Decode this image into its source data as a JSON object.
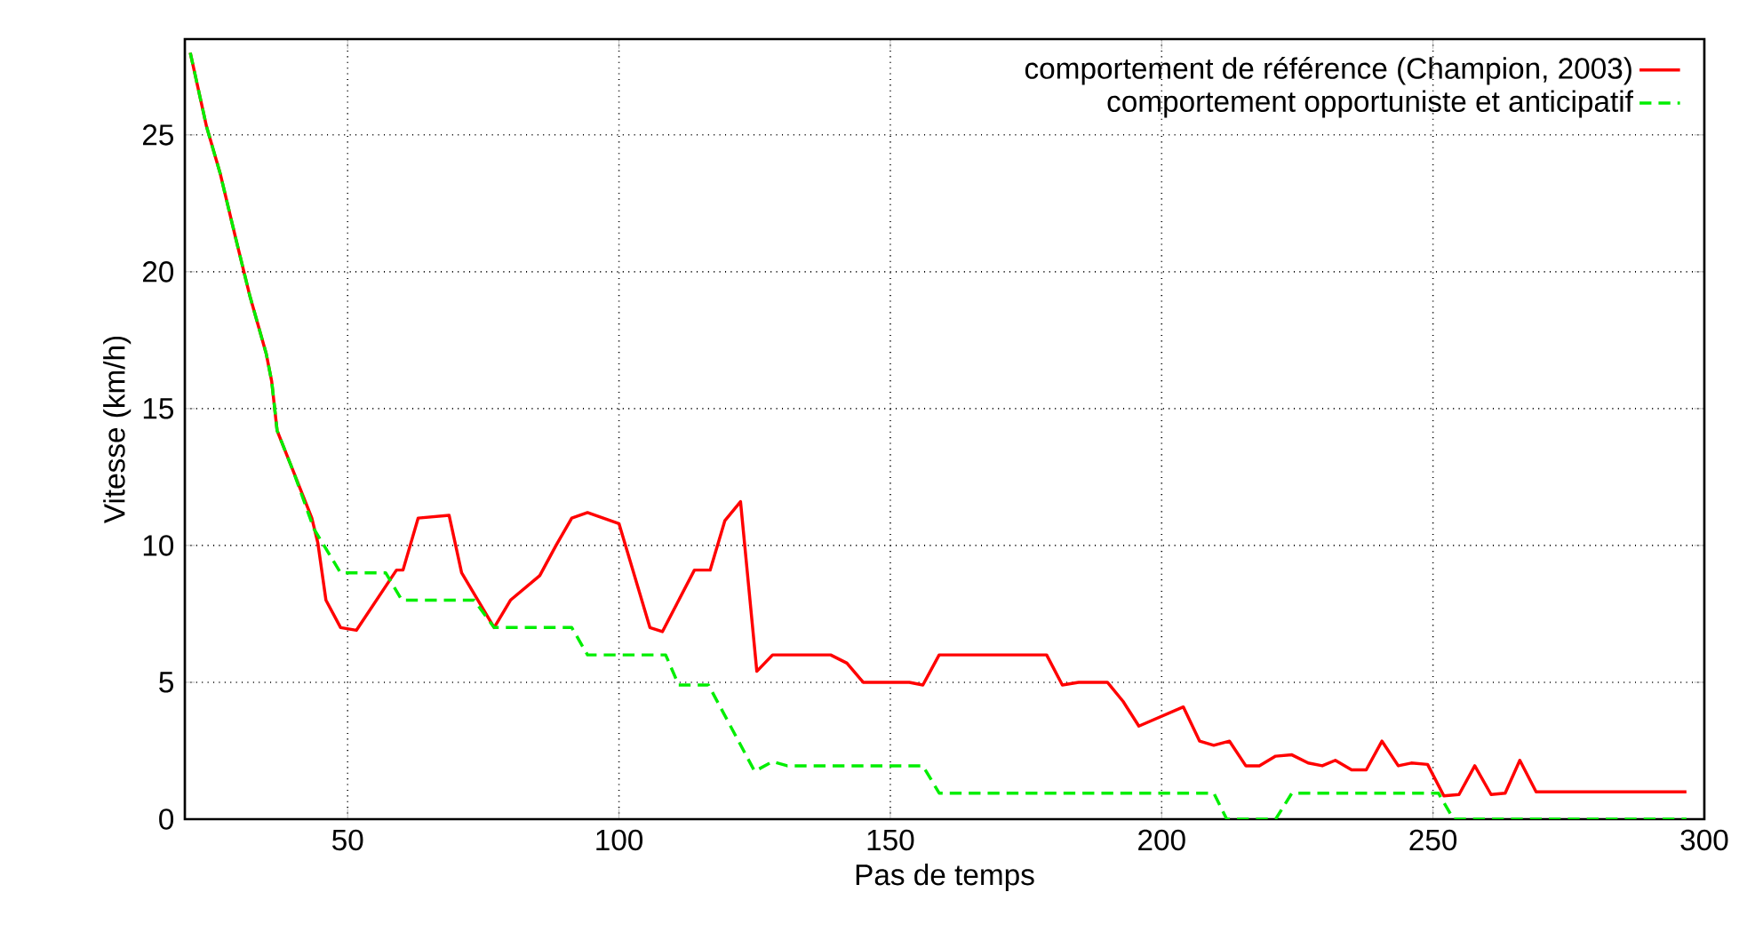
{
  "chart_data": {
    "type": "line",
    "xlabel": "Pas de temps",
    "ylabel": "Vitesse (km/h)",
    "xlim": [
      20,
      300
    ],
    "ylim": [
      0,
      28.5
    ],
    "xticks": [
      50,
      100,
      150,
      200,
      250,
      300
    ],
    "yticks": [
      0,
      5,
      10,
      15,
      20,
      25
    ],
    "grid": true,
    "legend": "top right",
    "marker": "none",
    "series": [
      {
        "name": "comportement de référence (Champion, 2003)",
        "color": "#ff0000",
        "line_style": "solid",
        "x": [
          21,
          24,
          26.5,
          29.4,
          32,
          35,
          36,
          37,
          40,
          43.4,
          44.5,
          46,
          48.7,
          51.6,
          59,
          60.2,
          63,
          68.7,
          71,
          77,
          80,
          85.4,
          88.4,
          91.3,
          94.2,
          100,
          105.7,
          108,
          113.9,
          116.8,
          119.5,
          122.4,
          125.4,
          128.3,
          139,
          142,
          145,
          153.5,
          156,
          159,
          178.8,
          181.7,
          184.7,
          190,
          192.9,
          195.8,
          204,
          207,
          209.6,
          212.5,
          215.5,
          218,
          221,
          224,
          227,
          229.6,
          232,
          235,
          237.7,
          240.6,
          243.6,
          246,
          249,
          252,
          254.8,
          257.7,
          260.7,
          263.3,
          266,
          269,
          296.7
        ],
        "values": [
          28,
          25.3,
          23.6,
          21.2,
          19.1,
          17,
          16,
          14.2,
          12.7,
          11,
          10.1,
          8,
          7,
          6.9,
          9.1,
          9.1,
          11,
          11.1,
          9,
          7,
          8,
          8.9,
          10,
          11,
          11.2,
          10.8,
          7,
          6.85,
          9.1,
          9.1,
          10.9,
          11.6,
          5.4,
          6,
          6,
          5.7,
          5,
          5,
          4.9,
          6,
          6,
          4.9,
          5,
          5,
          4.3,
          3.4,
          4.1,
          2.85,
          2.7,
          2.85,
          1.95,
          1.95,
          2.3,
          2.35,
          2.05,
          1.95,
          2.15,
          1.8,
          1.8,
          2.85,
          1.95,
          2.05,
          2,
          0.85,
          0.9,
          1.95,
          0.9,
          0.95,
          2.15,
          1,
          1
        ]
      },
      {
        "name": "comportement opportuniste et anticipatif",
        "color": "#00ee00",
        "line_style": "dashed",
        "x": [
          21,
          24,
          26.5,
          29.4,
          32,
          35,
          36,
          37,
          40,
          43.8,
          48.7,
          57,
          60,
          73.3,
          77,
          91.3,
          94.2,
          108.6,
          111,
          116.5,
          125,
          128.3,
          131,
          156,
          159,
          209.6,
          212,
          221,
          224,
          251,
          253.8,
          296.7
        ],
        "values": [
          28,
          25.3,
          23.6,
          21.2,
          19.1,
          17,
          16,
          14.2,
          12.7,
          10.6,
          9,
          9,
          8,
          8,
          7,
          7,
          6,
          6,
          4.9,
          4.9,
          1.75,
          2.1,
          1.95,
          1.95,
          0.95,
          0.95,
          0,
          0,
          0.95,
          0.95,
          0,
          0
        ]
      }
    ]
  }
}
